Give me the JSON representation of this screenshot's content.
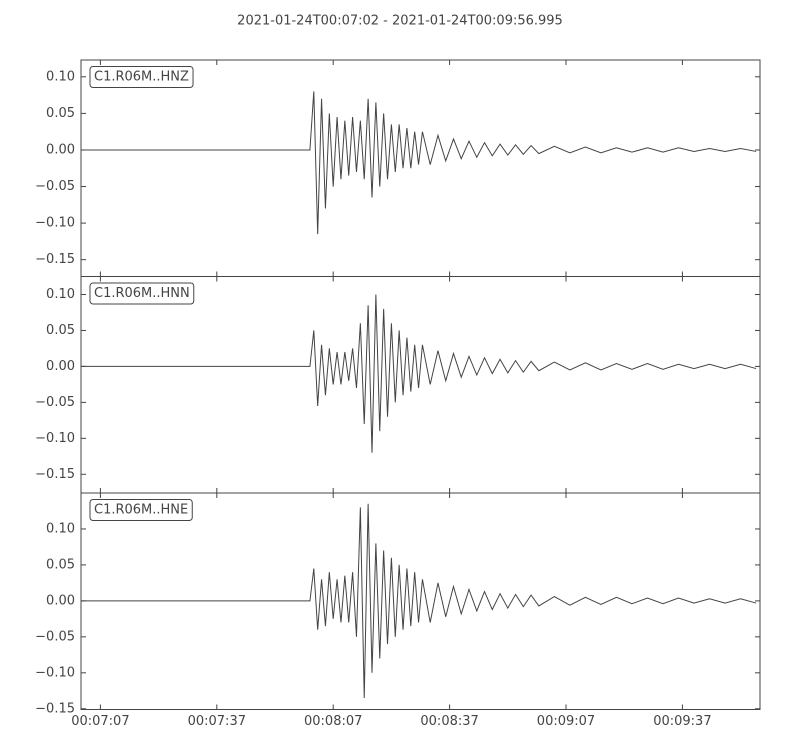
{
  "title": "2021-01-24T00:07:02  -  2021-01-24T00:09:56.995",
  "chart_data": [
    {
      "type": "line",
      "label": "C1.R06M..HNZ",
      "color": "#444444",
      "xlim": [
        "00:07:02",
        "00:09:57"
      ],
      "ylim": [
        -0.173,
        0.123
      ],
      "yticks": [
        {
          "value": 0.1,
          "label": "0.10"
        },
        {
          "value": 0.05,
          "label": "0.05"
        },
        {
          "value": 0,
          "label": "0.00"
        },
        {
          "value": -0.05,
          "label": "−0.05"
        },
        {
          "value": -0.1,
          "label": "−0.10"
        },
        {
          "value": -0.15,
          "label": "−0.15"
        }
      ],
      "x": [
        "00:07:02",
        "00:08:01",
        "00:08:02",
        "00:08:03",
        "00:08:04",
        "00:08:05",
        "00:08:06",
        "00:08:07",
        "00:08:08",
        "00:08:09",
        "00:08:10",
        "00:08:11",
        "00:08:12",
        "00:08:13",
        "00:08:14",
        "00:08:15",
        "00:08:16",
        "00:08:17",
        "00:08:18",
        "00:08:19",
        "00:08:20",
        "00:08:21",
        "00:08:22",
        "00:08:23",
        "00:08:24",
        "00:08:25",
        "00:08:26",
        "00:08:27",
        "00:08:28",
        "00:08:29",
        "00:08:30",
        "00:08:32",
        "00:08:34",
        "00:08:36",
        "00:08:38",
        "00:08:40",
        "00:08:42",
        "00:08:44",
        "00:08:46",
        "00:08:48",
        "00:08:50",
        "00:08:52",
        "00:08:54",
        "00:08:56",
        "00:08:58",
        "00:09:00",
        "00:09:04",
        "00:09:08",
        "00:09:12",
        "00:09:16",
        "00:09:20",
        "00:09:24",
        "00:09:28",
        "00:09:32",
        "00:09:36",
        "00:09:40",
        "00:09:44",
        "00:09:48",
        "00:09:52",
        "00:09:56"
      ],
      "values": [
        0,
        0,
        0.08,
        -0.115,
        0.07,
        -0.08,
        0.05,
        -0.05,
        0.045,
        -0.04,
        0.04,
        -0.035,
        0.045,
        -0.03,
        0.04,
        -0.04,
        0.07,
        -0.065,
        0.065,
        -0.05,
        0.05,
        -0.04,
        0.035,
        -0.03,
        0.035,
        -0.025,
        0.03,
        -0.025,
        0.025,
        -0.02,
        0.025,
        -0.02,
        0.02,
        -0.015,
        0.015,
        -0.012,
        0.012,
        -0.01,
        0.01,
        -0.008,
        0.008,
        -0.007,
        0.007,
        -0.006,
        0.006,
        -0.005,
        0.005,
        -0.004,
        0.004,
        -0.004,
        0.003,
        -0.003,
        0.003,
        -0.003,
        0.003,
        -0.002,
        0.002,
        -0.002,
        0.002,
        -0.002
      ]
    },
    {
      "type": "line",
      "label": "C1.R06M..HNN",
      "color": "#444444",
      "xlim": [
        "00:07:02",
        "00:09:57"
      ],
      "ylim": [
        -0.176,
        0.125
      ],
      "yticks": [
        {
          "value": 0.1,
          "label": "0.10"
        },
        {
          "value": 0.05,
          "label": "0.05"
        },
        {
          "value": 0,
          "label": "0.00"
        },
        {
          "value": -0.05,
          "label": "−0.05"
        },
        {
          "value": -0.1,
          "label": "−0.10"
        },
        {
          "value": -0.15,
          "label": "−0.15"
        }
      ],
      "x": [
        "00:07:02",
        "00:08:01",
        "00:08:02",
        "00:08:03",
        "00:08:04",
        "00:08:05",
        "00:08:06",
        "00:08:07",
        "00:08:08",
        "00:08:09",
        "00:08:10",
        "00:08:11",
        "00:08:12",
        "00:08:13",
        "00:08:14",
        "00:08:15",
        "00:08:16",
        "00:08:17",
        "00:08:18",
        "00:08:19",
        "00:08:20",
        "00:08:21",
        "00:08:22",
        "00:08:23",
        "00:08:24",
        "00:08:25",
        "00:08:26",
        "00:08:27",
        "00:08:28",
        "00:08:29",
        "00:08:30",
        "00:08:32",
        "00:08:34",
        "00:08:36",
        "00:08:38",
        "00:08:40",
        "00:08:42",
        "00:08:44",
        "00:08:46",
        "00:08:48",
        "00:08:50",
        "00:08:52",
        "00:08:54",
        "00:08:56",
        "00:08:58",
        "00:09:00",
        "00:09:04",
        "00:09:08",
        "00:09:12",
        "00:09:16",
        "00:09:20",
        "00:09:24",
        "00:09:28",
        "00:09:32",
        "00:09:36",
        "00:09:40",
        "00:09:44",
        "00:09:48",
        "00:09:52",
        "00:09:56"
      ],
      "values": [
        0,
        0,
        0.05,
        -0.055,
        0.03,
        -0.04,
        0.025,
        -0.025,
        0.02,
        -0.025,
        0.02,
        -0.02,
        0.025,
        -0.03,
        0.06,
        -0.08,
        0.085,
        -0.12,
        0.1,
        -0.09,
        0.08,
        -0.07,
        0.06,
        -0.05,
        0.05,
        -0.04,
        0.04,
        -0.035,
        0.03,
        -0.03,
        0.03,
        -0.025,
        0.022,
        -0.02,
        0.018,
        -0.015,
        0.014,
        -0.012,
        0.012,
        -0.01,
        0.01,
        -0.009,
        0.008,
        -0.008,
        0.007,
        -0.006,
        0.006,
        -0.005,
        0.005,
        -0.005,
        0.004,
        -0.004,
        0.004,
        -0.004,
        0.003,
        -0.003,
        0.003,
        -0.003,
        0.003,
        -0.003
      ]
    },
    {
      "type": "line",
      "label": "C1.R06M..HNE",
      "color": "#444444",
      "xlim": [
        "00:07:02",
        "00:09:57"
      ],
      "ylim": [
        -0.151,
        0.15
      ],
      "xticks": [
        "00:07:07",
        "00:07:37",
        "00:08:07",
        "00:08:37",
        "00:09:07",
        "00:09:37"
      ],
      "yticks": [
        {
          "value": 0.1,
          "label": "0.10"
        },
        {
          "value": 0.05,
          "label": "0.05"
        },
        {
          "value": 0,
          "label": "0.00"
        },
        {
          "value": -0.05,
          "label": "−0.05"
        },
        {
          "value": -0.1,
          "label": "−0.10"
        },
        {
          "value": -0.15,
          "label": "−0.15"
        }
      ],
      "x": [
        "00:07:02",
        "00:08:01",
        "00:08:02",
        "00:08:03",
        "00:08:04",
        "00:08:05",
        "00:08:06",
        "00:08:07",
        "00:08:08",
        "00:08:09",
        "00:08:10",
        "00:08:11",
        "00:08:12",
        "00:08:13",
        "00:08:14",
        "00:08:15",
        "00:08:16",
        "00:08:17",
        "00:08:18",
        "00:08:19",
        "00:08:20",
        "00:08:21",
        "00:08:22",
        "00:08:23",
        "00:08:24",
        "00:08:25",
        "00:08:26",
        "00:08:27",
        "00:08:28",
        "00:08:29",
        "00:08:30",
        "00:08:32",
        "00:08:34",
        "00:08:36",
        "00:08:38",
        "00:08:40",
        "00:08:42",
        "00:08:44",
        "00:08:46",
        "00:08:48",
        "00:08:50",
        "00:08:52",
        "00:08:54",
        "00:08:56",
        "00:08:58",
        "00:09:00",
        "00:09:04",
        "00:09:08",
        "00:09:12",
        "00:09:16",
        "00:09:20",
        "00:09:24",
        "00:09:28",
        "00:09:32",
        "00:09:36",
        "00:09:40",
        "00:09:44",
        "00:09:48",
        "00:09:52",
        "00:09:56"
      ],
      "values": [
        0,
        0,
        0.045,
        -0.04,
        0.03,
        -0.035,
        0.04,
        -0.025,
        0.03,
        -0.03,
        0.035,
        -0.03,
        0.04,
        -0.05,
        0.13,
        -0.135,
        0.135,
        -0.1,
        0.08,
        -0.08,
        0.07,
        -0.06,
        0.06,
        -0.05,
        0.05,
        -0.04,
        0.045,
        -0.035,
        0.04,
        -0.03,
        0.03,
        -0.03,
        0.025,
        -0.022,
        0.02,
        -0.018,
        0.016,
        -0.014,
        0.013,
        -0.012,
        0.01,
        -0.01,
        0.009,
        -0.008,
        0.008,
        -0.007,
        0.006,
        -0.006,
        0.005,
        -0.005,
        0.005,
        -0.004,
        0.004,
        -0.004,
        0.004,
        -0.003,
        0.003,
        -0.003,
        0.003,
        -0.003
      ]
    }
  ]
}
